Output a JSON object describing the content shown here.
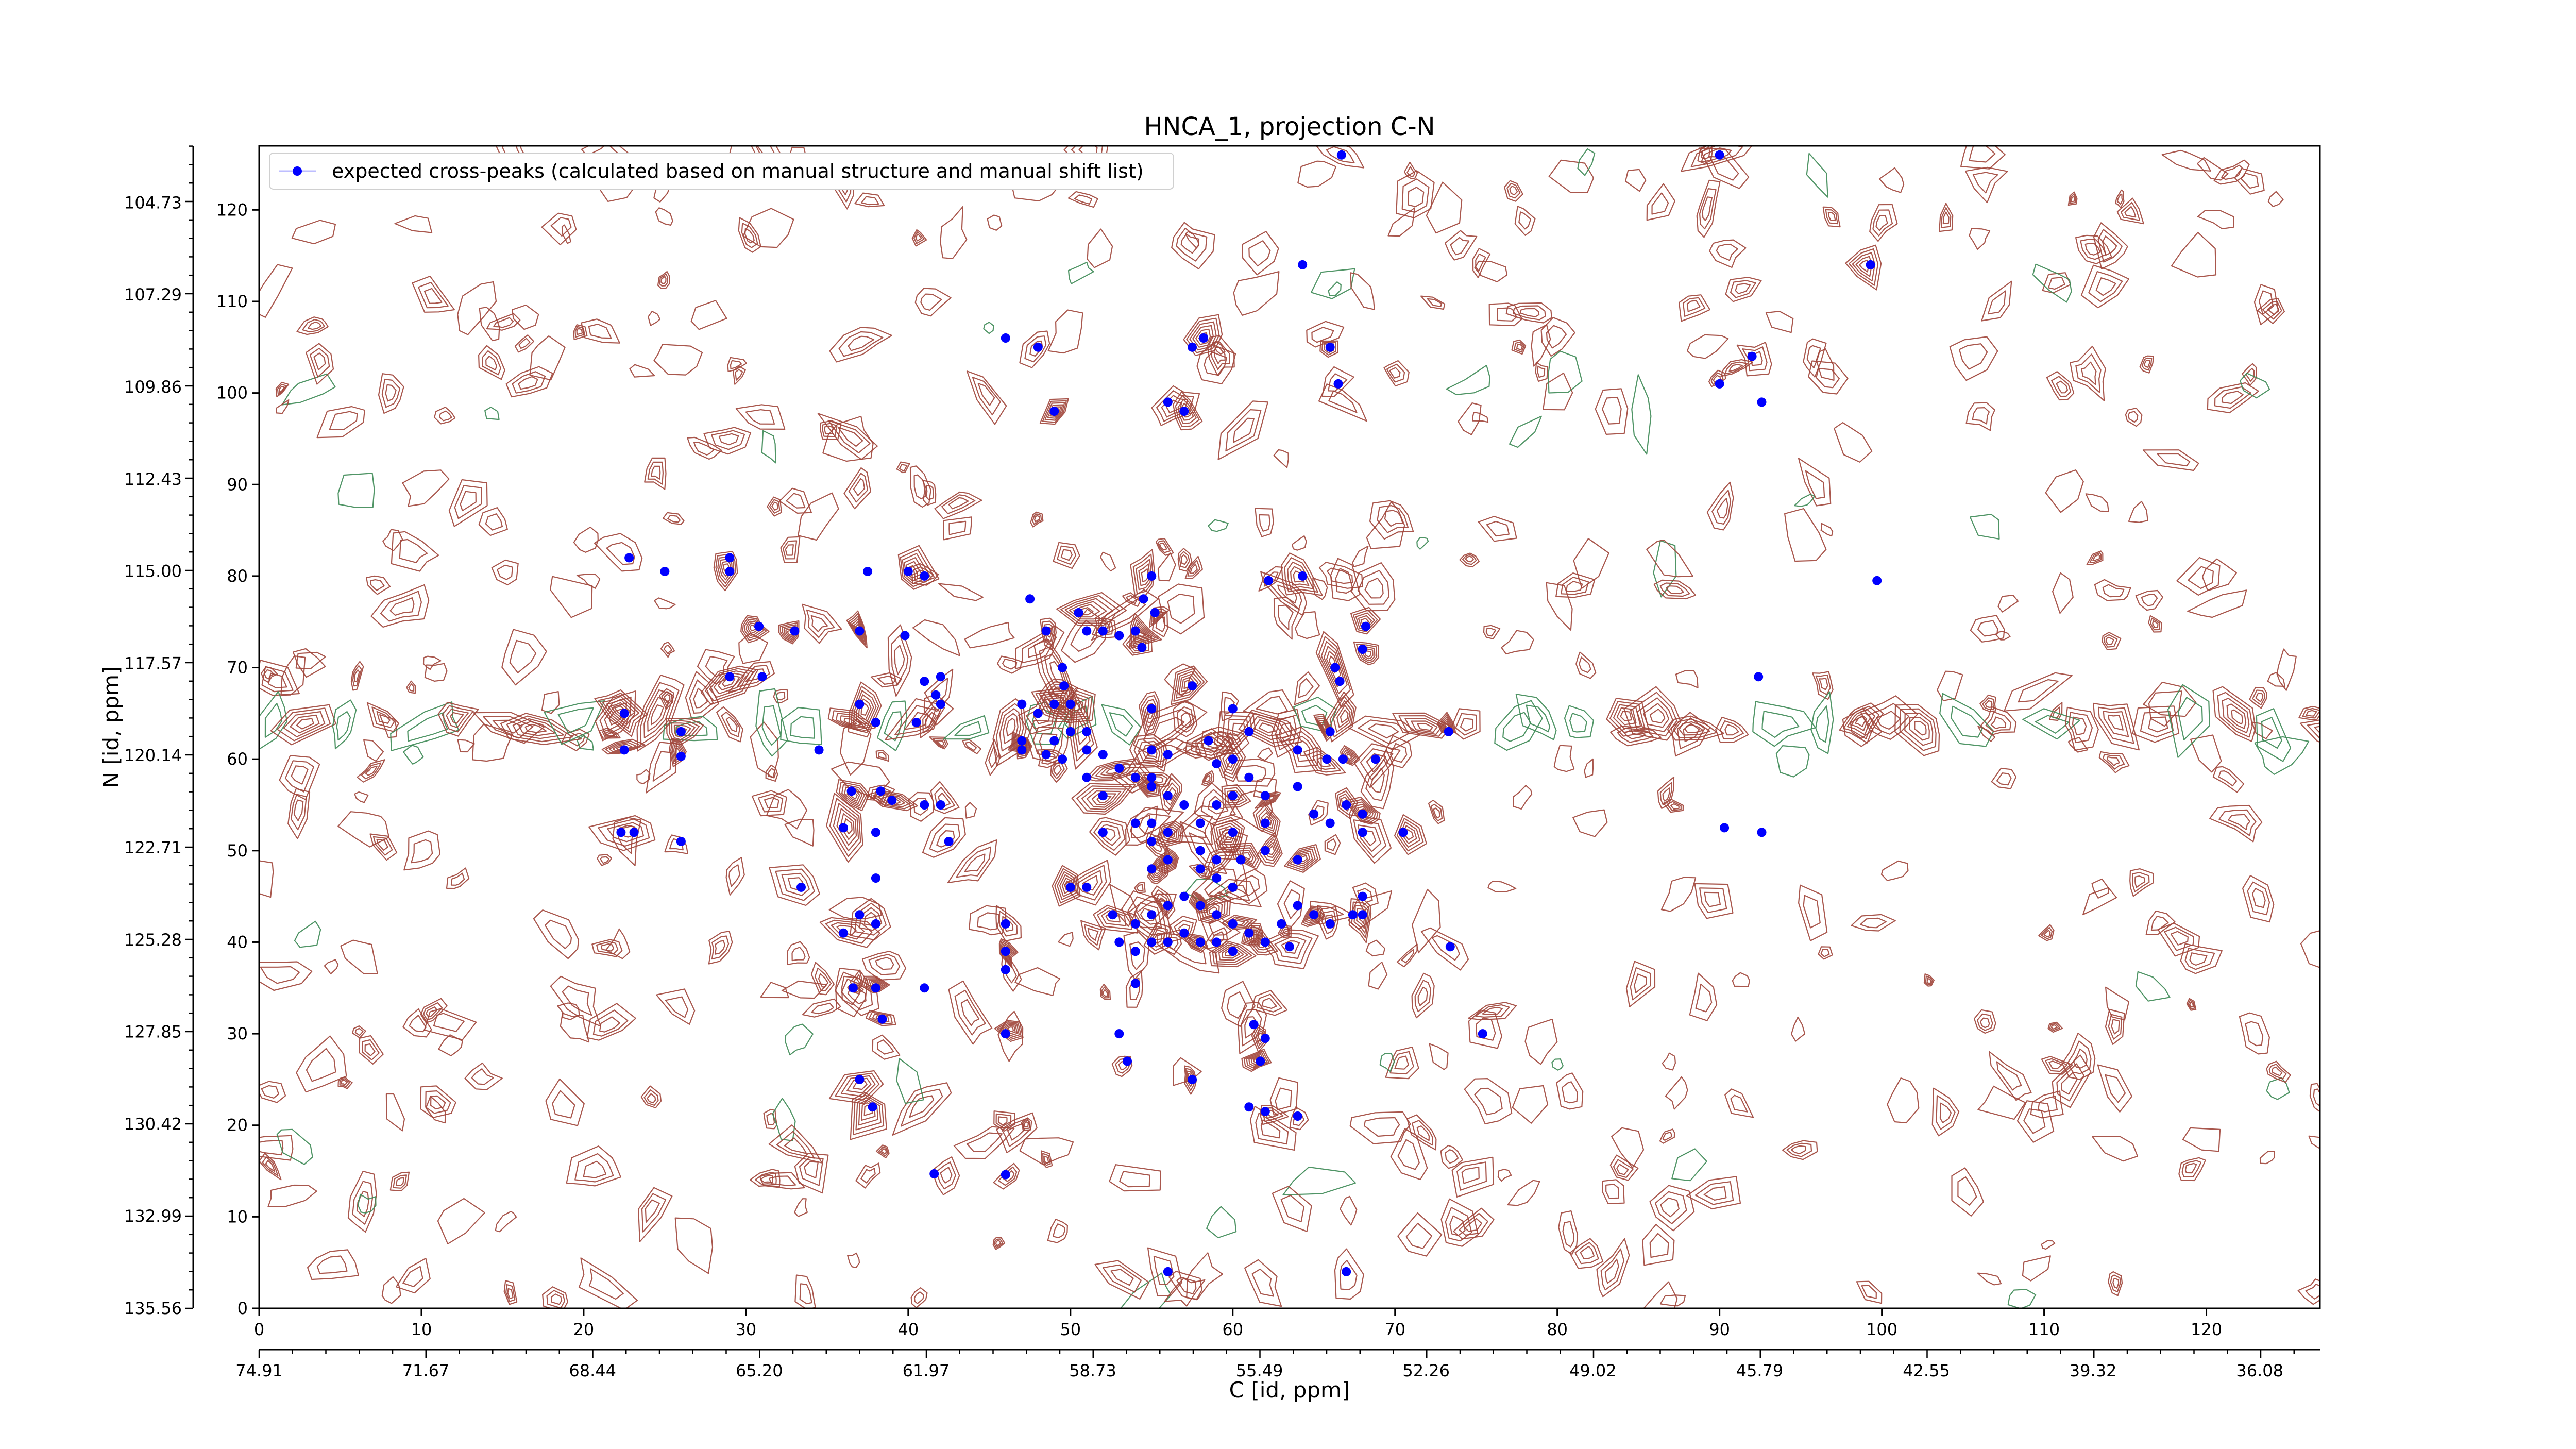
{
  "chart_data": {
    "type": "scatter",
    "title": "HNCA_1, projection C-N",
    "xlabel": "C [id, ppm]",
    "ylabel": "N [id, ppm]",
    "xlim": [
      0,
      127
    ],
    "ylim": [
      0,
      127
    ],
    "x_ticks": [
      0,
      10,
      20,
      30,
      40,
      50,
      60,
      70,
      80,
      90,
      100,
      110,
      120
    ],
    "y_ticks": [
      0,
      10,
      20,
      30,
      40,
      50,
      60,
      70,
      80,
      90,
      100,
      110,
      120
    ],
    "x_ppm_ticks": [
      "74.91",
      "71.67",
      "68.44",
      "65.20",
      "61.97",
      "58.73",
      "55.49",
      "52.26",
      "49.02",
      "45.79",
      "42.55",
      "39.32",
      "36.08"
    ],
    "y_ppm_ticks": [
      "135.56",
      "132.99",
      "130.42",
      "127.85",
      "125.28",
      "122.71",
      "120.14",
      "117.57",
      "115.00",
      "112.43",
      "109.86",
      "107.29",
      "104.73"
    ],
    "legend": {
      "position": "top-left",
      "label": "expected cross-peaks (calculated based on manual structure and manual shift list)",
      "marker_color": "#0000ff"
    },
    "colors": {
      "positive_contour": "#a0453a",
      "negative_contour": "#3d8a55",
      "peak": "#0000ff"
    },
    "series": [
      {
        "name": "expected cross-peaks (calculated based on manual structure and manual shift list)",
        "points": [
          [
            66.7,
            126
          ],
          [
            90,
            126
          ],
          [
            64.3,
            114
          ],
          [
            99.3,
            114
          ],
          [
            46,
            106
          ],
          [
            48,
            105
          ],
          [
            57.5,
            105
          ],
          [
            58.2,
            106
          ],
          [
            66.5,
            101
          ],
          [
            90,
            101
          ],
          [
            92,
            104
          ],
          [
            92.6,
            99
          ],
          [
            49,
            98
          ],
          [
            56,
            99
          ],
          [
            57,
            98
          ],
          [
            66,
            105
          ],
          [
            22.8,
            82
          ],
          [
            25,
            80.5
          ],
          [
            29,
            82
          ],
          [
            29,
            80.5
          ],
          [
            37.5,
            80.5
          ],
          [
            40,
            80.5
          ],
          [
            41,
            80
          ],
          [
            62.2,
            79.5
          ],
          [
            64.3,
            80
          ],
          [
            99.7,
            79.5
          ],
          [
            55,
            80
          ],
          [
            47.5,
            77.5
          ],
          [
            50.5,
            76
          ],
          [
            54.5,
            77.5
          ],
          [
            30.8,
            74.5
          ],
          [
            33,
            74
          ],
          [
            37,
            74
          ],
          [
            39.8,
            73.5
          ],
          [
            48.5,
            74
          ],
          [
            51,
            74
          ],
          [
            52,
            74
          ],
          [
            53,
            73.5
          ],
          [
            54,
            74
          ],
          [
            55.2,
            76
          ],
          [
            54.4,
            72.2
          ],
          [
            66.3,
            70
          ],
          [
            68,
            72
          ],
          [
            68.2,
            74.5
          ],
          [
            29,
            69
          ],
          [
            31,
            69
          ],
          [
            41,
            68.5
          ],
          [
            42,
            69
          ],
          [
            41.7,
            67
          ],
          [
            49.5,
            70
          ],
          [
            49.6,
            68
          ],
          [
            57.5,
            68
          ],
          [
            66.6,
            68.5
          ],
          [
            92.4,
            69
          ],
          [
            37,
            66
          ],
          [
            38,
            64
          ],
          [
            40.5,
            64
          ],
          [
            42,
            66
          ],
          [
            47,
            66
          ],
          [
            48,
            65
          ],
          [
            49,
            66
          ],
          [
            50,
            66
          ],
          [
            22.5,
            65
          ],
          [
            26,
            63
          ],
          [
            22.5,
            61
          ],
          [
            26,
            60.3
          ],
          [
            34.5,
            61
          ],
          [
            47,
            62
          ],
          [
            49,
            62
          ],
          [
            50,
            63
          ],
          [
            51,
            63
          ],
          [
            55,
            65.5
          ],
          [
            58.5,
            62
          ],
          [
            60,
            65.5
          ],
          [
            61,
            63
          ],
          [
            64,
            61
          ],
          [
            66,
            63
          ],
          [
            73.3,
            63
          ],
          [
            47,
            61
          ],
          [
            48.5,
            60.5
          ],
          [
            49.5,
            60
          ],
          [
            51,
            61
          ],
          [
            52,
            60.5
          ],
          [
            55,
            61
          ],
          [
            56,
            60.5
          ],
          [
            53,
            59
          ],
          [
            54,
            58
          ],
          [
            55,
            58
          ],
          [
            59,
            59.5
          ],
          [
            60,
            60
          ],
          [
            65.8,
            60
          ],
          [
            66.8,
            60
          ],
          [
            68.8,
            60
          ],
          [
            61,
            58
          ],
          [
            36.5,
            56.5
          ],
          [
            38.3,
            56.5
          ],
          [
            39,
            55.5
          ],
          [
            41,
            55
          ],
          [
            42,
            55
          ],
          [
            51,
            58
          ],
          [
            52,
            56
          ],
          [
            55,
            57
          ],
          [
            56,
            56
          ],
          [
            57,
            55
          ],
          [
            59,
            55
          ],
          [
            60,
            56
          ],
          [
            62,
            56
          ],
          [
            64,
            57
          ],
          [
            22.3,
            52
          ],
          [
            23.1,
            52
          ],
          [
            26,
            51
          ],
          [
            36,
            52.5
          ],
          [
            38,
            52
          ],
          [
            42.5,
            51
          ],
          [
            52,
            52
          ],
          [
            54,
            53
          ],
          [
            55,
            53
          ],
          [
            55,
            51
          ],
          [
            56,
            52
          ],
          [
            58,
            53
          ],
          [
            60,
            52
          ],
          [
            62,
            53
          ],
          [
            65,
            54
          ],
          [
            66,
            53
          ],
          [
            67,
            55
          ],
          [
            68,
            54
          ],
          [
            68,
            52
          ],
          [
            70.5,
            52
          ],
          [
            90.3,
            52.5
          ],
          [
            92.6,
            52
          ],
          [
            56,
            49
          ],
          [
            58,
            50
          ],
          [
            58,
            48
          ],
          [
            59,
            49
          ],
          [
            60.5,
            49
          ],
          [
            62,
            50
          ],
          [
            64,
            49
          ],
          [
            55,
            48
          ],
          [
            50,
            46
          ],
          [
            51,
            46
          ],
          [
            59,
            47
          ],
          [
            60,
            46
          ],
          [
            33.4,
            46
          ],
          [
            38,
            47
          ],
          [
            37,
            43
          ],
          [
            38,
            42
          ],
          [
            54,
            42
          ],
          [
            55,
            43
          ],
          [
            56,
            44
          ],
          [
            57,
            45
          ],
          [
            58,
            44
          ],
          [
            59,
            43
          ],
          [
            60,
            42
          ],
          [
            61,
            41
          ],
          [
            62,
            40
          ],
          [
            63,
            42
          ],
          [
            64,
            44
          ],
          [
            65,
            43
          ],
          [
            66,
            42
          ],
          [
            56,
            40
          ],
          [
            57,
            41
          ],
          [
            58,
            40
          ],
          [
            59,
            40
          ],
          [
            60,
            39
          ],
          [
            36,
            41
          ],
          [
            46,
            42
          ],
          [
            52.6,
            43
          ],
          [
            53,
            40
          ],
          [
            54,
            39
          ],
          [
            55,
            40
          ],
          [
            63.5,
            39.5
          ],
          [
            67.4,
            43
          ],
          [
            68,
            45
          ],
          [
            68,
            43
          ],
          [
            73.4,
            39.5
          ],
          [
            46,
            39
          ],
          [
            46,
            37
          ],
          [
            36.6,
            35
          ],
          [
            38,
            35
          ],
          [
            41,
            35
          ],
          [
            54,
            35.5
          ],
          [
            38.4,
            31.6
          ],
          [
            46,
            30
          ],
          [
            53,
            30
          ],
          [
            61.3,
            31
          ],
          [
            62,
            29.5
          ],
          [
            75.4,
            30
          ],
          [
            53.5,
            27
          ],
          [
            61.7,
            27
          ],
          [
            37,
            25
          ],
          [
            37.8,
            22
          ],
          [
            57.5,
            25
          ],
          [
            61,
            22
          ],
          [
            62,
            21.5
          ],
          [
            64,
            21
          ],
          [
            41.6,
            14.7
          ],
          [
            46,
            14.6
          ],
          [
            56,
            4
          ],
          [
            67,
            4
          ]
        ]
      }
    ]
  }
}
